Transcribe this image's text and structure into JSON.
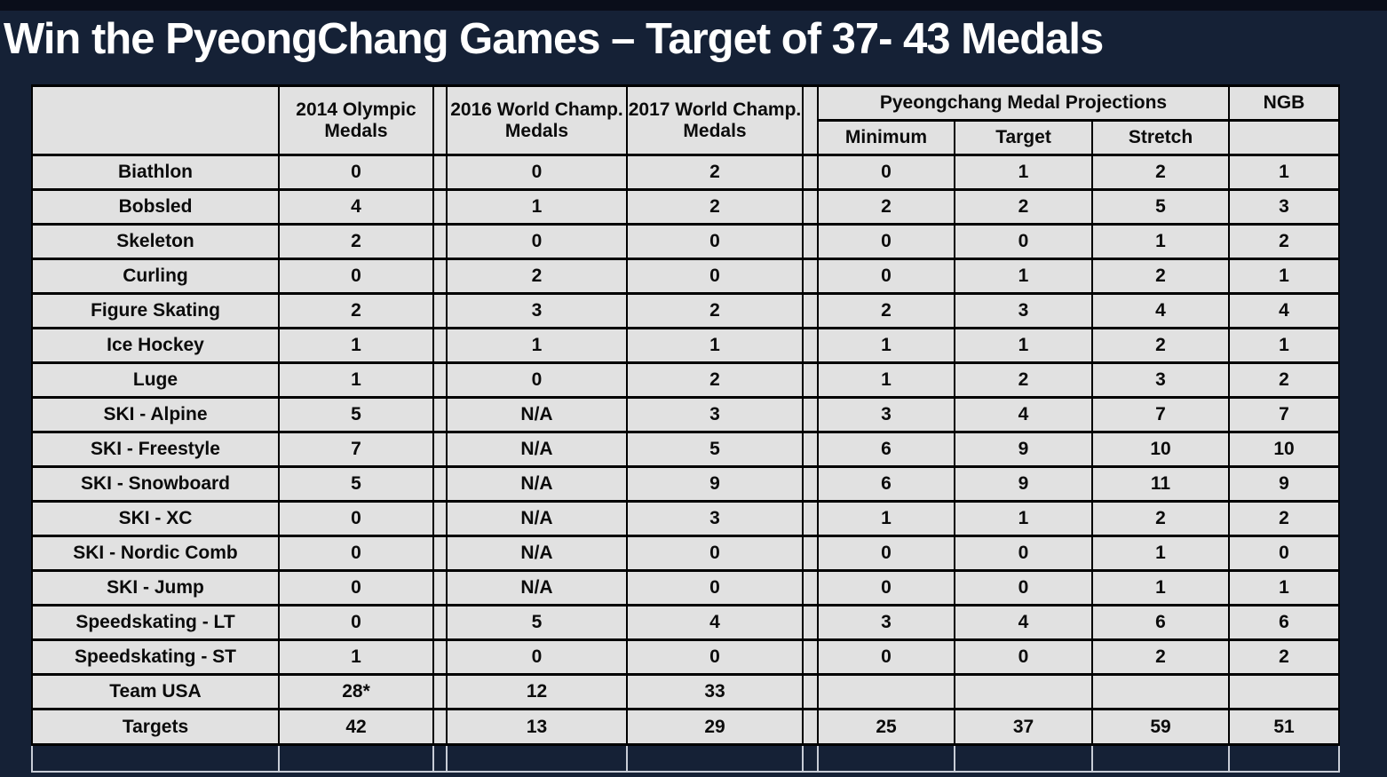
{
  "title": "Win the PyeongChang Games – Target of 37- 43 Medals",
  "table": {
    "headers": {
      "corner": "",
      "olympic2014": "2014 Olympic Medals",
      "world2016": "2016 World Champ. Medals",
      "world2017": "2017 World Champ. Medals",
      "projections_group": "Pyeongchang Medal Projections",
      "minimum": "Minimum",
      "target": "Target",
      "stretch": "Stretch",
      "ngb": "NGB"
    },
    "rows": [
      {
        "label": "Biathlon",
        "olympic2014": "0",
        "world2016": "0",
        "world2017": "2",
        "minimum": "0",
        "target": "1",
        "stretch": "2",
        "ngb": "1",
        "ngb_yellow": false
      },
      {
        "label": "Bobsled",
        "olympic2014": "4",
        "world2016": "1",
        "world2017": "2",
        "minimum": "2",
        "target": "2",
        "stretch": "5",
        "ngb": "3",
        "ngb_yellow": false
      },
      {
        "label": "Skeleton",
        "olympic2014": "2",
        "world2016": "0",
        "world2017": "0",
        "minimum": "0",
        "target": "0",
        "stretch": "1",
        "ngb": "2",
        "ngb_yellow": false
      },
      {
        "label": "Curling",
        "olympic2014": "0",
        "world2016": "2",
        "world2017": "0",
        "minimum": "0",
        "target": "1",
        "stretch": "2",
        "ngb": "1",
        "ngb_yellow": false
      },
      {
        "label": "Figure Skating",
        "olympic2014": "2",
        "world2016": "3",
        "world2017": "2",
        "minimum": "2",
        "target": "3",
        "stretch": "4",
        "ngb": "4",
        "ngb_yellow": false
      },
      {
        "label": "Ice Hockey",
        "olympic2014": "1",
        "world2016": "1",
        "world2017": "1",
        "minimum": "1",
        "target": "1",
        "stretch": "2",
        "ngb": "1",
        "ngb_yellow": false
      },
      {
        "label": "Luge",
        "olympic2014": "1",
        "world2016": "0",
        "world2017": "2",
        "minimum": "1",
        "target": "2",
        "stretch": "3",
        "ngb": "2",
        "ngb_yellow": false
      },
      {
        "label": "SKI - Alpine",
        "olympic2014": "5",
        "world2016": "N/A",
        "world2017": "3",
        "minimum": "3",
        "target": "4",
        "stretch": "7",
        "ngb": "7",
        "ngb_yellow": true
      },
      {
        "label": "SKI - Freestyle",
        "olympic2014": "7",
        "world2016": "N/A",
        "world2017": "5",
        "minimum": "6",
        "target": "9",
        "stretch": "10",
        "ngb": "10",
        "ngb_yellow": true
      },
      {
        "label": "SKI - Snowboard",
        "olympic2014": "5",
        "world2016": "N/A",
        "world2017": "9",
        "minimum": "6",
        "target": "9",
        "stretch": "11",
        "ngb": "9",
        "ngb_yellow": true
      },
      {
        "label": "SKI - XC",
        "olympic2014": "0",
        "world2016": "N/A",
        "world2017": "3",
        "minimum": "1",
        "target": "1",
        "stretch": "2",
        "ngb": "2",
        "ngb_yellow": true
      },
      {
        "label": "SKI - Nordic Comb",
        "olympic2014": "0",
        "world2016": "N/A",
        "world2017": "0",
        "minimum": "0",
        "target": "0",
        "stretch": "1",
        "ngb": "0",
        "ngb_yellow": true
      },
      {
        "label": "SKI - Jump",
        "olympic2014": "0",
        "world2016": "N/A",
        "world2017": "0",
        "minimum": "0",
        "target": "0",
        "stretch": "1",
        "ngb": "1",
        "ngb_yellow": true
      },
      {
        "label": "Speedskating - LT",
        "olympic2014": "0",
        "world2016": "5",
        "world2017": "4",
        "minimum": "3",
        "target": "4",
        "stretch": "6",
        "ngb": "6",
        "ngb_yellow": false
      },
      {
        "label": "Speedskating - ST",
        "olympic2014": "1",
        "world2016": "0",
        "world2017": "0",
        "minimum": "0",
        "target": "0",
        "stretch": "2",
        "ngb": "2",
        "ngb_yellow": false
      }
    ],
    "team_usa_row": {
      "label": "Team USA",
      "olympic2014": "28*",
      "world2016": "12",
      "world2017": "33",
      "minimum": "",
      "target": "",
      "stretch": "",
      "ngb": "",
      "ngb_yellow": false
    },
    "targets_row": {
      "label": "Targets",
      "olympic2014": "42",
      "world2016": "13",
      "world2017": "29",
      "minimum": "25",
      "target": "37",
      "stretch": "59",
      "ngb": "51",
      "ngb_yellow": false
    }
  },
  "colors": {
    "background_navy": "#152136",
    "top_bar_black": "#0a0e1a",
    "cell_gray": "#e1e1e1",
    "highlight_yellow": "#ffff33",
    "targets_green": "#92d050",
    "targets_blue": "#a3bfe3",
    "grid_black": "#000000",
    "void_grid_gray": "#c7ccd6",
    "title_white": "#ffffff"
  }
}
